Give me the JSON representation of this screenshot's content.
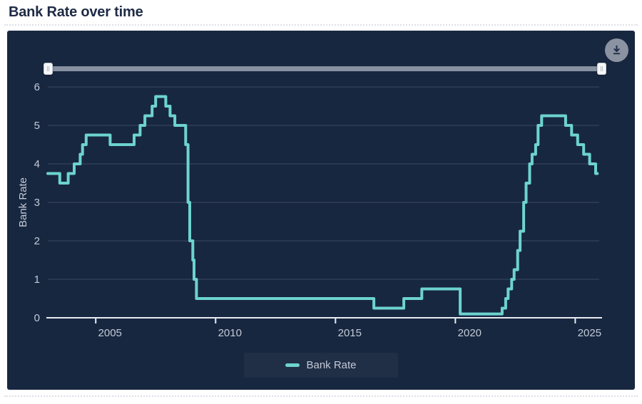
{
  "page": {
    "title": "Bank Rate over time"
  },
  "toolbar": {
    "download_icon": "download-icon"
  },
  "colors": {
    "title_text": "#1e2a45",
    "panel_bg": "#182740",
    "line": "#6dd3cf",
    "tick_text": "#c2cad6",
    "grid": "rgba(255,255,255,0.16)",
    "axis": "#e8ebf1",
    "slider_track": "#8791a1",
    "download_btn": "#8b93a2"
  },
  "chart_data": {
    "type": "line",
    "step": true,
    "title": "Bank Rate over time",
    "xlabel": "",
    "ylabel": "Bank Rate",
    "legend_position": "bottom-center",
    "grid": true,
    "background": "#182740",
    "x_domain": [
      2003.0,
      2026.0
    ],
    "x_end": 2025.92,
    "ylim": [
      0,
      6
    ],
    "x_ticks": [
      2005,
      2010,
      2015,
      2020,
      2025
    ],
    "y_ticks": [
      0,
      1,
      2,
      3,
      4,
      5,
      6
    ],
    "series": [
      {
        "name": "Bank Rate",
        "color": "#6dd3cf",
        "points": [
          [
            2003.0,
            3.75
          ],
          [
            2003.5,
            3.5
          ],
          [
            2003.85,
            3.75
          ],
          [
            2004.1,
            4.0
          ],
          [
            2004.35,
            4.25
          ],
          [
            2004.45,
            4.5
          ],
          [
            2004.6,
            4.75
          ],
          [
            2005.6,
            4.5
          ],
          [
            2006.6,
            4.75
          ],
          [
            2006.85,
            5.0
          ],
          [
            2007.05,
            5.25
          ],
          [
            2007.35,
            5.5
          ],
          [
            2007.5,
            5.75
          ],
          [
            2007.92,
            5.5
          ],
          [
            2008.1,
            5.25
          ],
          [
            2008.3,
            5.0
          ],
          [
            2008.75,
            4.5
          ],
          [
            2008.85,
            3.0
          ],
          [
            2008.92,
            2.0
          ],
          [
            2009.05,
            1.5
          ],
          [
            2009.1,
            1.0
          ],
          [
            2009.2,
            0.5
          ],
          [
            2016.6,
            0.25
          ],
          [
            2017.85,
            0.5
          ],
          [
            2018.6,
            0.75
          ],
          [
            2020.2,
            0.1
          ],
          [
            2021.95,
            0.25
          ],
          [
            2022.1,
            0.5
          ],
          [
            2022.2,
            0.75
          ],
          [
            2022.35,
            1.0
          ],
          [
            2022.45,
            1.25
          ],
          [
            2022.6,
            1.75
          ],
          [
            2022.7,
            2.25
          ],
          [
            2022.85,
            3.0
          ],
          [
            2022.95,
            3.5
          ],
          [
            2023.1,
            4.0
          ],
          [
            2023.2,
            4.25
          ],
          [
            2023.35,
            4.5
          ],
          [
            2023.45,
            5.0
          ],
          [
            2023.6,
            5.25
          ],
          [
            2024.6,
            5.0
          ],
          [
            2024.85,
            4.75
          ],
          [
            2025.1,
            4.5
          ],
          [
            2025.35,
            4.25
          ],
          [
            2025.6,
            4.0
          ],
          [
            2025.85,
            3.75
          ]
        ]
      }
    ]
  }
}
